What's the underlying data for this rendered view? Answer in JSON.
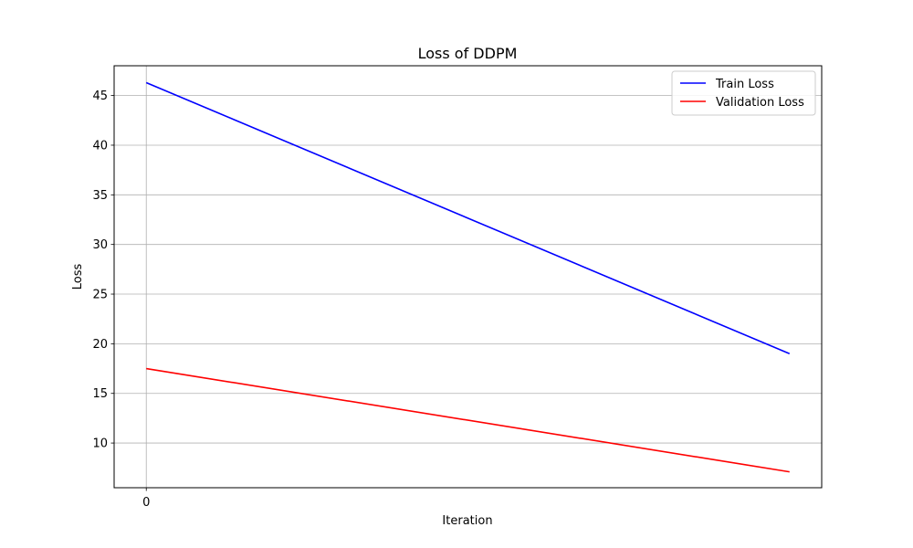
{
  "chart_data": {
    "type": "line",
    "title": "Loss of DDPM",
    "xlabel": "Iteration",
    "ylabel": "Loss",
    "x": [
      0,
      1
    ],
    "xticks": [
      0
    ],
    "xtick_labels": [
      "0"
    ],
    "xlim": [
      -0.05,
      1.05
    ],
    "yticks": [
      10,
      15,
      20,
      25,
      30,
      35,
      40,
      45
    ],
    "ytick_labels": [
      "10",
      "15",
      "20",
      "25",
      "30",
      "35",
      "40",
      "45"
    ],
    "ylim": [
      5.5,
      48.0
    ],
    "grid": true,
    "legend": "top-right",
    "series": [
      {
        "name": "Train Loss",
        "color": "#0000ff",
        "values": [
          46.3,
          19.0
        ]
      },
      {
        "name": "Validation Loss",
        "color": "#ff0000",
        "values": [
          17.5,
          7.1
        ]
      }
    ]
  }
}
